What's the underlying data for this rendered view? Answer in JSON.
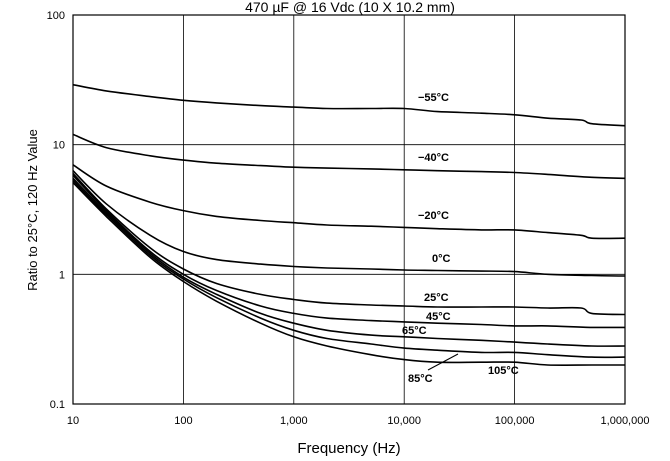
{
  "chart_data": {
    "type": "line",
    "title": "470 µF @ 16 Vdc (10 X 10.2  mm)",
    "xlabel": "Frequency (Hz)",
    "ylabel": "Ratio to 25°C, 120 Hz Value",
    "x_scale": "log",
    "y_scale": "log",
    "xlim": [
      10,
      1000000
    ],
    "ylim": [
      0.1,
      100
    ],
    "x_ticks": [
      10,
      100,
      1000,
      10000,
      100000,
      1000000
    ],
    "x_tick_labels": [
      "10",
      "100",
      "1,000",
      "10,000",
      "100,000",
      "1,000,000"
    ],
    "y_ticks": [
      0.1,
      1,
      10,
      100
    ],
    "y_tick_labels": [
      "0.1",
      "1",
      "10",
      "100"
    ],
    "grid": true,
    "series": [
      {
        "name": "−55°C",
        "x": [
          10,
          20,
          50,
          100,
          200,
          500,
          1000,
          2000,
          5000,
          10000,
          20000,
          50000,
          100000,
          200000,
          400000,
          500000,
          1000000
        ],
        "y": [
          29,
          26,
          23.5,
          22,
          21,
          20,
          19.5,
          19,
          19,
          19,
          18,
          17.5,
          17,
          16,
          15.5,
          14.5,
          14
        ]
      },
      {
        "name": "−40°C",
        "x": [
          10,
          20,
          50,
          100,
          200,
          500,
          1000,
          2000,
          5000,
          10000,
          20000,
          50000,
          100000,
          200000,
          500000,
          1000000
        ],
        "y": [
          12,
          9.5,
          8.2,
          7.6,
          7.2,
          6.9,
          6.7,
          6.6,
          6.5,
          6.4,
          6.3,
          6.2,
          6.1,
          5.9,
          5.6,
          5.5
        ]
      },
      {
        "name": "−20°C",
        "x": [
          10,
          20,
          50,
          100,
          200,
          500,
          1000,
          2000,
          5000,
          10000,
          20000,
          50000,
          100000,
          200000,
          400000,
          500000,
          1000000
        ],
        "y": [
          7,
          4.8,
          3.6,
          3.1,
          2.8,
          2.6,
          2.5,
          2.4,
          2.35,
          2.3,
          2.25,
          2.2,
          2.2,
          2.1,
          2.0,
          1.9,
          1.9
        ]
      },
      {
        "name": "0°C",
        "x": [
          10,
          20,
          50,
          100,
          200,
          500,
          1000,
          2000,
          5000,
          10000,
          20000,
          50000,
          100000,
          200000,
          500000,
          1000000
        ],
        "y": [
          6.3,
          3.5,
          2.0,
          1.5,
          1.3,
          1.2,
          1.15,
          1.12,
          1.1,
          1.08,
          1.07,
          1.06,
          1.05,
          1.0,
          0.98,
          0.97
        ]
      },
      {
        "name": "25°C",
        "x": [
          10,
          20,
          50,
          100,
          200,
          500,
          1000,
          2000,
          5000,
          10000,
          20000,
          50000,
          100000,
          200000,
          400000,
          500000,
          1000000
        ],
        "y": [
          6,
          3.2,
          1.6,
          1.1,
          0.85,
          0.7,
          0.64,
          0.6,
          0.58,
          0.57,
          0.56,
          0.56,
          0.56,
          0.55,
          0.55,
          0.5,
          0.49
        ]
      },
      {
        "name": "45°C",
        "x": [
          10,
          20,
          50,
          100,
          200,
          500,
          1000,
          2000,
          5000,
          10000,
          20000,
          50000,
          100000,
          200000,
          500000,
          1000000
        ],
        "y": [
          5.8,
          3.1,
          1.5,
          1.0,
          0.75,
          0.57,
          0.5,
          0.46,
          0.44,
          0.43,
          0.42,
          0.41,
          0.4,
          0.4,
          0.39,
          0.39
        ]
      },
      {
        "name": "65°C",
        "x": [
          10,
          20,
          50,
          100,
          200,
          500,
          1000,
          2000,
          5000,
          10000,
          20000,
          50000,
          100000,
          200000,
          500000,
          1000000
        ],
        "y": [
          5.5,
          3.0,
          1.45,
          0.95,
          0.7,
          0.5,
          0.42,
          0.37,
          0.34,
          0.33,
          0.32,
          0.31,
          0.3,
          0.29,
          0.28,
          0.28
        ]
      },
      {
        "name": "85°C",
        "x": [
          10,
          20,
          50,
          100,
          200,
          500,
          1000,
          2000,
          5000,
          10000,
          20000,
          50000,
          100000,
          200000,
          500000,
          1000000
        ],
        "y": [
          5.3,
          2.9,
          1.4,
          0.92,
          0.66,
          0.46,
          0.37,
          0.32,
          0.29,
          0.27,
          0.26,
          0.25,
          0.25,
          0.24,
          0.23,
          0.23
        ]
      },
      {
        "name": "105°C",
        "x": [
          10,
          20,
          50,
          100,
          200,
          500,
          1000,
          2000,
          5000,
          10000,
          20000,
          50000,
          100000,
          200000,
          500000,
          1000000
        ],
        "y": [
          5.1,
          2.8,
          1.35,
          0.88,
          0.62,
          0.42,
          0.33,
          0.28,
          0.24,
          0.22,
          0.21,
          0.21,
          0.21,
          0.2,
          0.2,
          0.2
        ]
      }
    ]
  }
}
